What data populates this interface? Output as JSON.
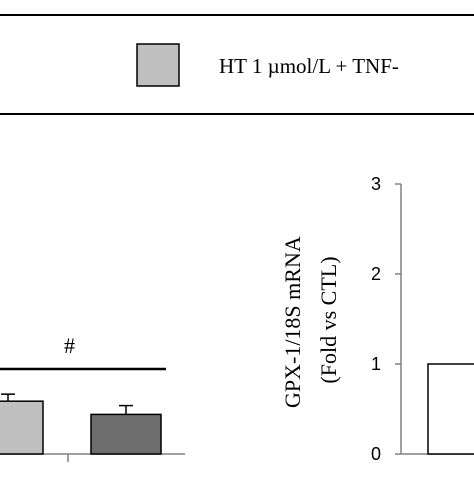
{
  "legend": {
    "entries": [
      {
        "label": "HT 1 µmol/L + TNF-",
        "color": "#c0c0c0"
      }
    ]
  },
  "chart_data": [
    {
      "type": "bar",
      "title": "",
      "xlabel": "",
      "ylabel": "",
      "annotation": "#",
      "categories": [
        "",
        ""
      ],
      "series": [
        {
          "values": [
            0.6,
            0.45
          ],
          "errors": [
            0.08,
            0.1
          ],
          "colors": [
            "#c0c0c0",
            "#6e6e6e"
          ]
        }
      ]
    },
    {
      "type": "bar",
      "title": "",
      "ylabel": "GPX-1/18S mRNA (Fold vs CTL)",
      "ylabel_lines": [
        "GPX-1/18S mRNA",
        "(Fold vs CTL)"
      ],
      "ylim": [
        0,
        3
      ],
      "yticks": [
        "0",
        "1",
        "2",
        "3"
      ],
      "categories": [
        ""
      ],
      "series": [
        {
          "values": [
            1.0
          ],
          "colors": [
            "#ffffff"
          ]
        }
      ]
    }
  ]
}
